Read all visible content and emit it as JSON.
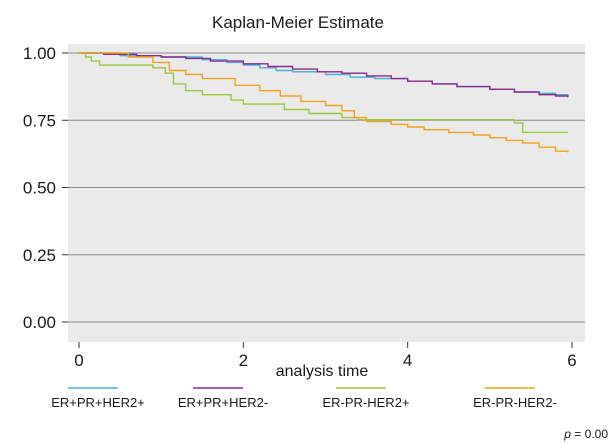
{
  "chart_data": {
    "type": "line",
    "step": true,
    "title": "Kaplan-Meier Estimate",
    "xlabel": "analysis time",
    "ylabel": "",
    "xlim": [
      0,
      6
    ],
    "ylim": [
      0,
      1
    ],
    "xticks": [
      0,
      2,
      4,
      6
    ],
    "yticks": [
      0,
      0.25,
      0.5,
      0.75,
      1.0
    ],
    "xtick_labels": [
      "0",
      "2",
      "4",
      "6"
    ],
    "ytick_labels": [
      "0.00",
      "0.25",
      "0.50",
      "0.75",
      "1.00"
    ],
    "grid": "horizontal",
    "legend_position": "bottom",
    "annotation": {
      "italic": "p",
      "text": " = 0.00"
    },
    "series": [
      {
        "name": "ER+PR+HER2+",
        "color": "#4bafd8",
        "points": [
          [
            0,
            1.0
          ],
          [
            0.5,
            0.99
          ],
          [
            1.0,
            0.985
          ],
          [
            1.5,
            0.975
          ],
          [
            1.8,
            0.965
          ],
          [
            2.0,
            0.955
          ],
          [
            2.2,
            0.945
          ],
          [
            2.4,
            0.935
          ],
          [
            2.6,
            0.93
          ],
          [
            3.0,
            0.92
          ],
          [
            3.3,
            0.91
          ],
          [
            3.6,
            0.905
          ],
          [
            4.0,
            0.895
          ],
          [
            4.3,
            0.885
          ],
          [
            4.6,
            0.875
          ],
          [
            5.0,
            0.865
          ],
          [
            5.3,
            0.855
          ],
          [
            5.6,
            0.85
          ],
          [
            5.8,
            0.845
          ],
          [
            5.95,
            0.84
          ]
        ]
      },
      {
        "name": "ER+PR+HER2-",
        "color": "#8b2a8b",
        "points": [
          [
            0,
            1.0
          ],
          [
            0.3,
            0.995
          ],
          [
            0.7,
            0.99
          ],
          [
            1.0,
            0.985
          ],
          [
            1.3,
            0.98
          ],
          [
            1.6,
            0.97
          ],
          [
            2.0,
            0.96
          ],
          [
            2.3,
            0.95
          ],
          [
            2.6,
            0.94
          ],
          [
            2.9,
            0.93
          ],
          [
            3.2,
            0.925
          ],
          [
            3.5,
            0.915
          ],
          [
            3.8,
            0.905
          ],
          [
            4.0,
            0.895
          ],
          [
            4.3,
            0.885
          ],
          [
            4.6,
            0.875
          ],
          [
            5.0,
            0.865
          ],
          [
            5.3,
            0.855
          ],
          [
            5.6,
            0.845
          ],
          [
            5.8,
            0.84
          ],
          [
            5.95,
            0.835
          ]
        ]
      },
      {
        "name": "ER-PR-HER2+",
        "color": "#9bc83c",
        "points": [
          [
            0,
            1.0
          ],
          [
            0.08,
            0.985
          ],
          [
            0.15,
            0.97
          ],
          [
            0.25,
            0.955
          ],
          [
            0.9,
            0.945
          ],
          [
            1.05,
            0.925
          ],
          [
            1.15,
            0.885
          ],
          [
            1.3,
            0.86
          ],
          [
            1.5,
            0.845
          ],
          [
            1.85,
            0.825
          ],
          [
            2.0,
            0.81
          ],
          [
            2.5,
            0.79
          ],
          [
            2.8,
            0.775
          ],
          [
            3.2,
            0.76
          ],
          [
            3.4,
            0.752
          ],
          [
            5.3,
            0.74
          ],
          [
            5.4,
            0.705
          ],
          [
            5.95,
            0.705
          ]
        ]
      },
      {
        "name": "ER-PR-HER2-",
        "color": "#f3a21f",
        "points": [
          [
            0,
            1.0
          ],
          [
            0.6,
            0.985
          ],
          [
            0.9,
            0.965
          ],
          [
            1.1,
            0.935
          ],
          [
            1.3,
            0.92
          ],
          [
            1.5,
            0.905
          ],
          [
            1.9,
            0.88
          ],
          [
            2.2,
            0.86
          ],
          [
            2.45,
            0.84
          ],
          [
            2.7,
            0.82
          ],
          [
            3.0,
            0.805
          ],
          [
            3.2,
            0.785
          ],
          [
            3.35,
            0.76
          ],
          [
            3.5,
            0.745
          ],
          [
            3.8,
            0.735
          ],
          [
            4.0,
            0.725
          ],
          [
            4.2,
            0.715
          ],
          [
            4.5,
            0.705
          ],
          [
            4.8,
            0.695
          ],
          [
            5.0,
            0.685
          ],
          [
            5.2,
            0.675
          ],
          [
            5.4,
            0.665
          ],
          [
            5.6,
            0.65
          ],
          [
            5.8,
            0.635
          ],
          [
            5.95,
            0.63
          ]
        ]
      }
    ]
  }
}
